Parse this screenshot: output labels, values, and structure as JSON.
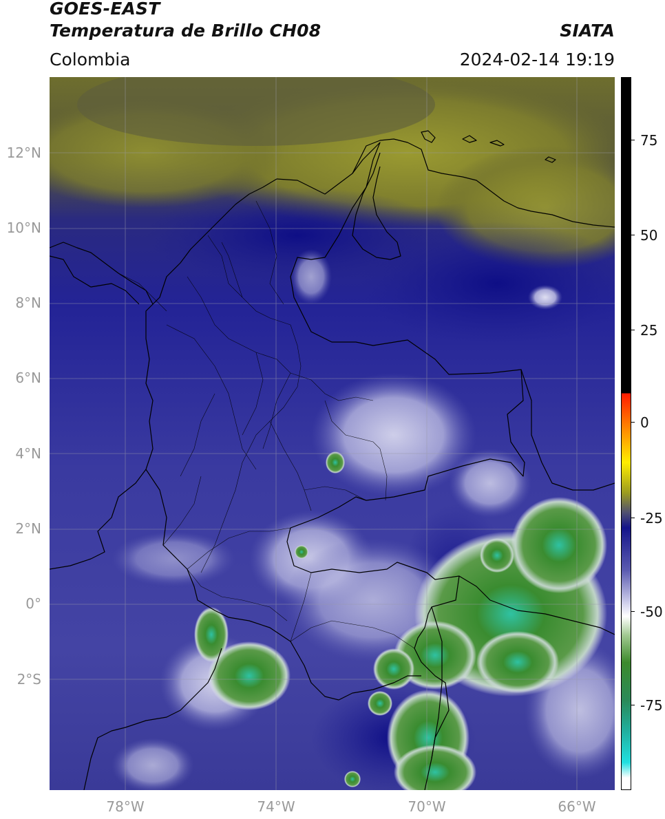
{
  "header": {
    "satellite": "GOES-EAST",
    "product": "Temperatura de Brillo CH08",
    "agency": "SIATA",
    "region": "Colombia",
    "datetime": "2024-02-14 19:19"
  },
  "map": {
    "lat_labels": [
      "12°N",
      "10°N",
      "8°N",
      "6°N",
      "4°N",
      "2°N",
      "0°",
      "2°S"
    ],
    "lon_labels": [
      "78°W",
      "74°W",
      "70°W",
      "66°W"
    ],
    "gridlines": true,
    "overlay": "country and department borders",
    "colors": {
      "cold_cloud_green": "#3d8a2e",
      "coldest_cyan": "#30c8a8",
      "clear_navy": "#1a1f8a",
      "dry_olive": "#8a8a2a",
      "border": "#000000"
    }
  },
  "colorbar": {
    "labels": [
      "75",
      "50",
      "25",
      "0",
      "-25",
      "-50",
      "-75"
    ],
    "unit_range": [
      -95,
      90
    ],
    "stops": [
      {
        "v": 90,
        "c": "#000000"
      },
      {
        "v": 8,
        "c": "#000000"
      },
      {
        "v": 8,
        "c": "#ff1a00"
      },
      {
        "v": 0,
        "c": "#ff7a00"
      },
      {
        "v": -10,
        "c": "#ffee00"
      },
      {
        "v": -18,
        "c": "#9a9a20"
      },
      {
        "v": -23,
        "c": "#505070"
      },
      {
        "v": -27,
        "c": "#14148a"
      },
      {
        "v": -38,
        "c": "#5a5ab0"
      },
      {
        "v": -46,
        "c": "#c8c8e8"
      },
      {
        "v": -50,
        "c": "#ffffff"
      },
      {
        "v": -55,
        "c": "#a0c890"
      },
      {
        "v": -62,
        "c": "#3c8a2c"
      },
      {
        "v": -72,
        "c": "#2a8a5a"
      },
      {
        "v": -80,
        "c": "#20b0a0"
      },
      {
        "v": -88,
        "c": "#20e0e0"
      },
      {
        "v": -92,
        "c": "#ffffff"
      },
      {
        "v": -95,
        "c": "#ffffff"
      }
    ]
  }
}
